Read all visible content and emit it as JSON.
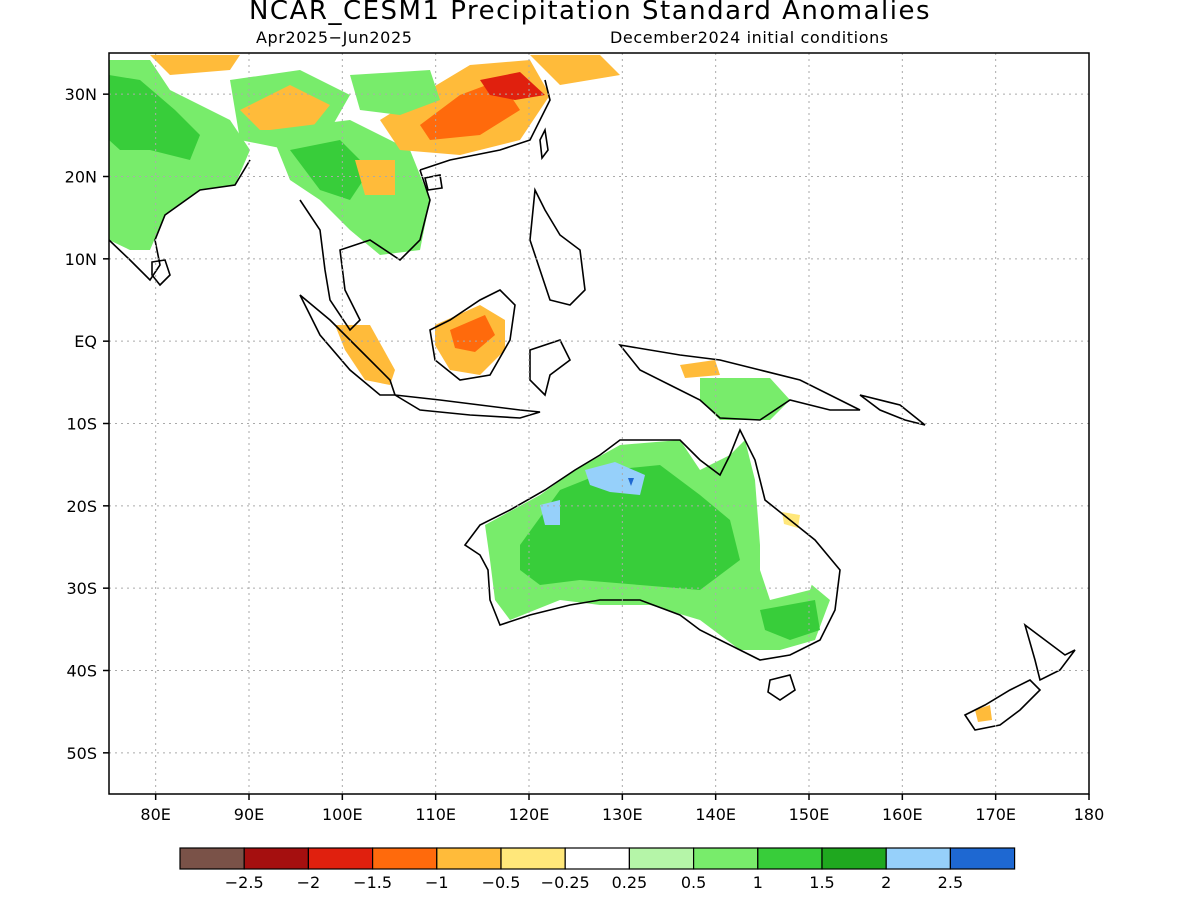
{
  "title": "NCAR_CESM1 Precipitation Standard Anomalies",
  "period": "Apr2025−Jun2025",
  "init": "December2024 initial conditions",
  "lat_labels": [
    {
      "lat": 30,
      "label": "30N"
    },
    {
      "lat": 20,
      "label": "20N"
    },
    {
      "lat": 10,
      "label": "10N"
    },
    {
      "lat": 0,
      "label": "EQ"
    },
    {
      "lat": -10,
      "label": "10S"
    },
    {
      "lat": -20,
      "label": "20S"
    },
    {
      "lat": -30,
      "label": "30S"
    },
    {
      "lat": -40,
      "label": "40S"
    },
    {
      "lat": -50,
      "label": "50S"
    }
  ],
  "lon_labels": [
    {
      "lon": 80,
      "label": "80E"
    },
    {
      "lon": 90,
      "label": "90E"
    },
    {
      "lon": 100,
      "label": "100E"
    },
    {
      "lon": 110,
      "label": "110E"
    },
    {
      "lon": 120,
      "label": "120E"
    },
    {
      "lon": 130,
      "label": "130E"
    },
    {
      "lon": 140,
      "label": "140E"
    },
    {
      "lon": 150,
      "label": "150E"
    },
    {
      "lon": 160,
      "label": "160E"
    },
    {
      "lon": 170,
      "label": "170E"
    },
    {
      "lon": 180,
      "label": "180"
    }
  ],
  "colorbar": {
    "colors": [
      "#7a5248",
      "#a50f0f",
      "#e0200e",
      "#ff6a0c",
      "#ffbb3a",
      "#ffe77a",
      "#ffffff",
      "#b5f5a8",
      "#78ec6b",
      "#38cd3a",
      "#1fa81f",
      "#96d0fa",
      "#1e68d2"
    ],
    "labels": [
      "−2.5",
      "−2",
      "−1.5",
      "−1",
      "−0.5",
      "−0.25",
      "0.25",
      "0.5",
      "1",
      "1.5",
      "2",
      "2.5"
    ]
  }
}
